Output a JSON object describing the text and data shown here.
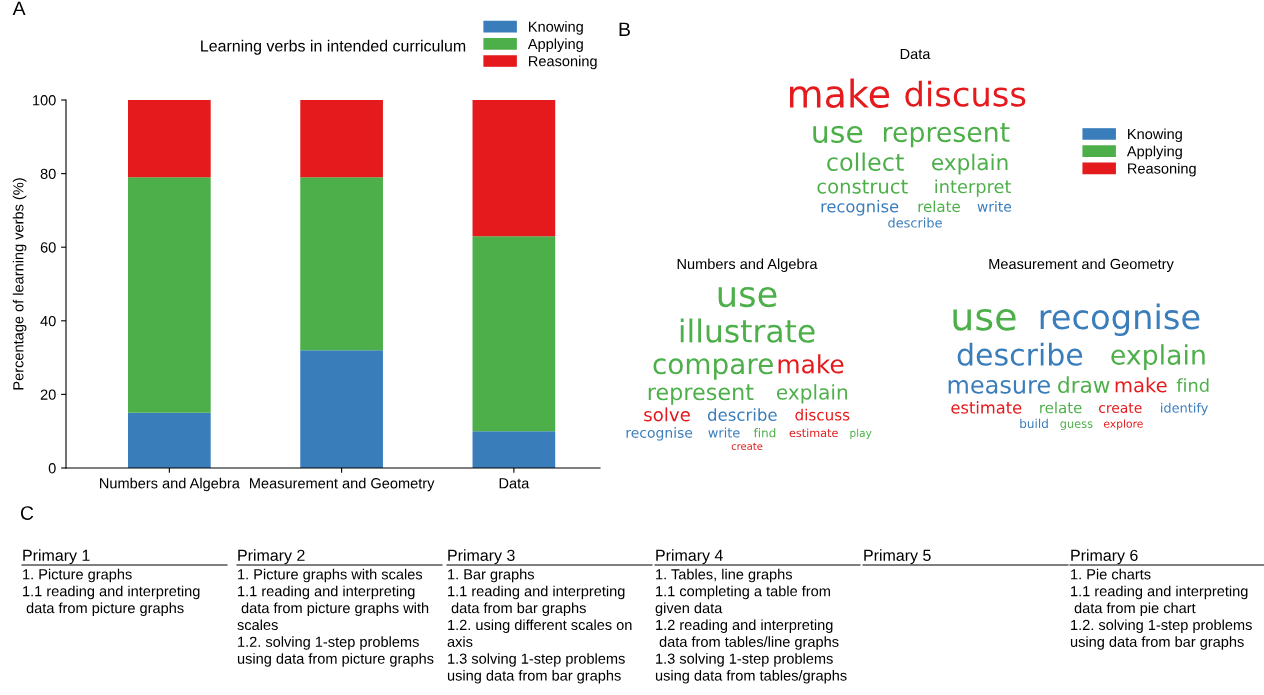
{
  "chart_data": [
    {
      "type": "bar",
      "title": "Learning verbs in intended curriculum",
      "ylabel": "Percentage of learning verbs (%)",
      "annotations": [
        "A"
      ],
      "categories": [
        "Numbers and Algebra",
        "Measurement and Geometry",
        "Data"
      ],
      "stacked": true,
      "ylim": [
        0,
        100
      ],
      "yticks": [
        0,
        20,
        40,
        60,
        80,
        100
      ],
      "grid": false,
      "legend": "top right",
      "series": [
        {
          "name": "Knowing",
          "color": "#3a7dbb",
          "values": [
            15,
            32,
            10
          ]
        },
        {
          "name": "Applying",
          "color": "#4daf4a",
          "values": [
            64,
            47,
            53
          ]
        },
        {
          "name": "Reasoning",
          "color": "#e41a1c",
          "values": [
            21,
            21,
            37
          ]
        }
      ]
    },
    {
      "type": "other",
      "title": "Data",
      "annotations": [
        "B"
      ],
      "categories": [
        "make",
        "discuss",
        "use",
        "represent",
        "collect",
        "explain",
        "construct",
        "interpret",
        "recognise",
        "relate",
        "write",
        "describe"
      ],
      "colors": [
        "#e41a1c",
        "#e41a1c",
        "#4daf4a",
        "#4daf4a",
        "#4daf4a",
        "#4daf4a",
        "#4daf4a",
        "#4daf4a",
        "#3a7dbb",
        "#4daf4a",
        "#3a7dbb",
        "#3a7dbb"
      ]
    },
    {
      "type": "other",
      "title": "Numbers and Algebra",
      "categories": [
        "use",
        "illustrate",
        "compare",
        "make",
        "represent",
        "explain",
        "solve",
        "describe",
        "discuss",
        "recognise",
        "write",
        "find",
        "estimate",
        "play",
        "create"
      ],
      "colors": [
        "#4daf4a",
        "#4daf4a",
        "#4daf4a",
        "#e41a1c",
        "#4daf4a",
        "#4daf4a",
        "#e41a1c",
        "#3a7dbb",
        "#e41a1c",
        "#3a7dbb",
        "#3a7dbb",
        "#4daf4a",
        "#e41a1c",
        "#4daf4a",
        "#e41a1c"
      ]
    },
    {
      "type": "other",
      "title": "Measurement and Geometry",
      "categories": [
        "use",
        "recognise",
        "describe",
        "explain",
        "measure",
        "draw",
        "make",
        "find",
        "estimate",
        "relate",
        "create",
        "identify",
        "build",
        "guess",
        "explore"
      ],
      "colors": [
        "#4daf4a",
        "#3a7dbb",
        "#3a7dbb",
        "#4daf4a",
        "#3a7dbb",
        "#4daf4a",
        "#e41a1c",
        "#4daf4a",
        "#e41a1c",
        "#4daf4a",
        "#e41a1c",
        "#3a7dbb",
        "#3a7dbb",
        "#4daf4a",
        "#e41a1c"
      ]
    },
    {
      "type": "other",
      "categories": [
        "Knowing",
        "Applying",
        "Reasoning"
      ],
      "colors": [
        "#3a7dbb",
        "#4daf4a",
        "#e41a1c"
      ]
    },
    {
      "type": "other",
      "title": "Primary 1",
      "annotations": [
        "C",
        "1. Picture graphs",
        "1.1 reading and interpreting",
        " data from picture graphs"
      ]
    },
    {
      "type": "other",
      "title": "Primary 2",
      "annotations": [
        "1. Picture graphs with scales",
        "1.1 reading and interpreting",
        " data from picture graphs with",
        "scales",
        "1.2. solving 1-step problems",
        "using data from picture graphs"
      ]
    },
    {
      "type": "other",
      "title": "Primary 3",
      "annotations": [
        "1. Bar graphs",
        "1.1 reading and interpreting",
        " data from bar graphs",
        "1.2. using different scales on",
        "axis",
        "1.3 solving 1-step problems",
        "using data from bar graphs"
      ]
    },
    {
      "type": "other",
      "title": "Primary 4",
      "annotations": [
        "1. Tables, line graphs",
        "1.1 completing a table from",
        "given data",
        "1.2 reading and interpreting",
        " data from tables/line graphs",
        "1.3 solving 1-step problems",
        "using data from tables/graphs"
      ]
    },
    {
      "type": "other",
      "title": "Primary 5"
    },
    {
      "type": "other",
      "title": "Primary 6",
      "annotations": [
        "1. Pie charts",
        "1.1 reading and interpreting",
        " data from pie chart",
        "1.2. solving 1-step problems",
        "using data from bar graphs"
      ]
    }
  ]
}
